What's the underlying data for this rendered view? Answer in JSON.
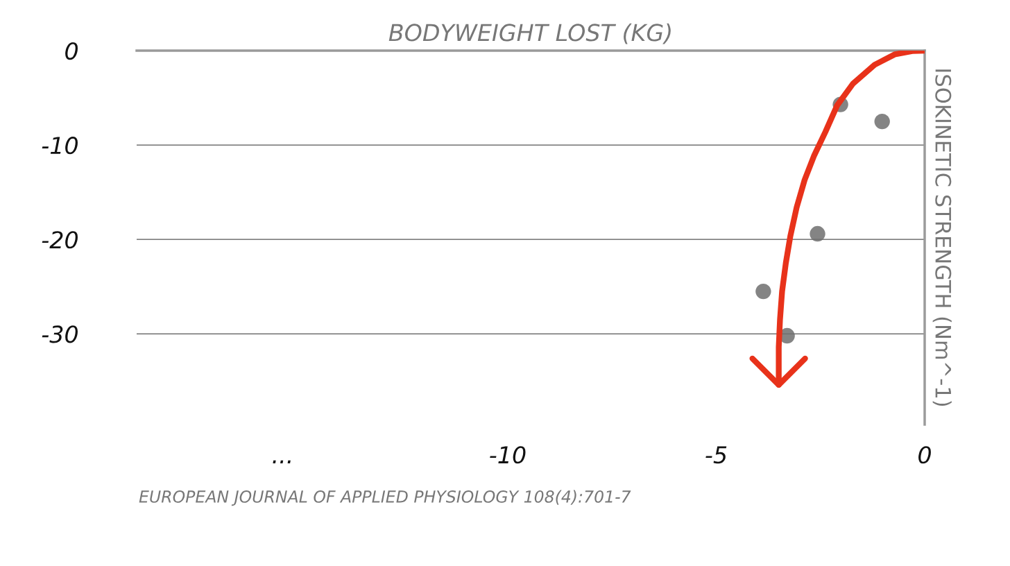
{
  "chart_data": {
    "type": "scatter",
    "xlabel": "BODYWEIGHT LOST (KG)",
    "ylabel": "ISOKINETIC STRENGTH (Nm^-1)",
    "xlim": [
      -18.9,
      0
    ],
    "ylim": [
      -39.6,
      0
    ],
    "xticks": [
      {
        "value": -15.4,
        "label": "..."
      },
      -10,
      -5,
      0
    ],
    "yticks": [
      0,
      -10,
      -20,
      -30
    ],
    "grid": "y",
    "series": [
      {
        "marker": "circle",
        "color": "#6e6e6e",
        "x": [
          -2.02,
          -1.02,
          -2.57,
          -3.87,
          -3.3
        ],
        "values": [
          -5.7,
          -7.5,
          -19.4,
          -25.5,
          -30.2
        ]
      },
      {
        "type": "line",
        "color": "#e8321a",
        "x": [
          0,
          -0.3,
          -0.72,
          -1.2,
          -1.72,
          -2.1,
          -2.38,
          -2.65,
          -2.88,
          -3.07,
          -3.22,
          -3.33,
          -3.42,
          -3.47,
          -3.5,
          -3.5
        ],
        "values": [
          0,
          -0.05,
          -0.4,
          -1.5,
          -3.5,
          -5.8,
          -8.6,
          -11.1,
          -13.7,
          -16.6,
          -19.6,
          -22.5,
          -25.5,
          -28.5,
          -31.4,
          -35.4
        ]
      }
    ],
    "annotations": [
      "EUROPEAN JOURNAL OF APPLIED PHYSIOLOGY 108(4):701-7"
    ]
  }
}
